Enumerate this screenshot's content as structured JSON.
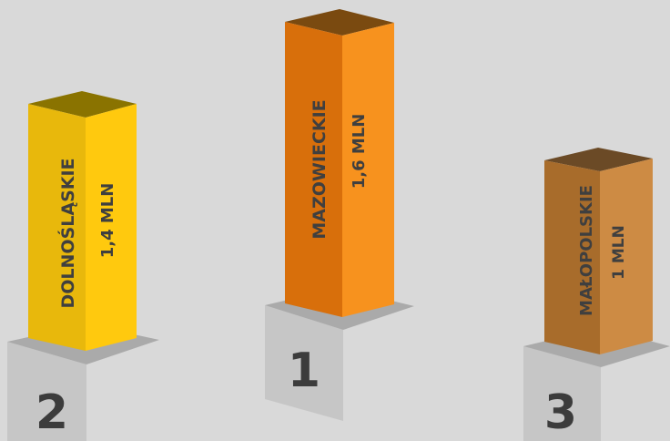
{
  "chart_data": {
    "type": "bar",
    "categories": [
      "DOLNOŚLĄSKIE",
      "MAZOWIECKIE",
      "MAŁOPOLSKIE"
    ],
    "values": [
      1.4,
      1.6,
      1.0
    ],
    "value_labels": [
      "1,4 MLN",
      "1,6 MLN",
      "1 MLN"
    ],
    "ranks": [
      "2",
      "1",
      "3"
    ],
    "title": "",
    "xlabel": "",
    "ylabel": "",
    "colors": {
      "DOLNOŚLĄSKIE": {
        "front": "#e8b80c",
        "side": "#ffc90e",
        "top": "#8a7300"
      },
      "MAZOWIECKIE": {
        "front": "#d86f0b",
        "side": "#f7921e",
        "top": "#7a4a10"
      },
      "MAŁOPOLSKIE": {
        "front": "#a86c2b",
        "side": "#cd8b44",
        "top": "#6b4a26"
      }
    },
    "podium_colors": {
      "front": "#c4c4c4",
      "side": "#b3b3b3",
      "top": "#a9a9a9"
    }
  }
}
